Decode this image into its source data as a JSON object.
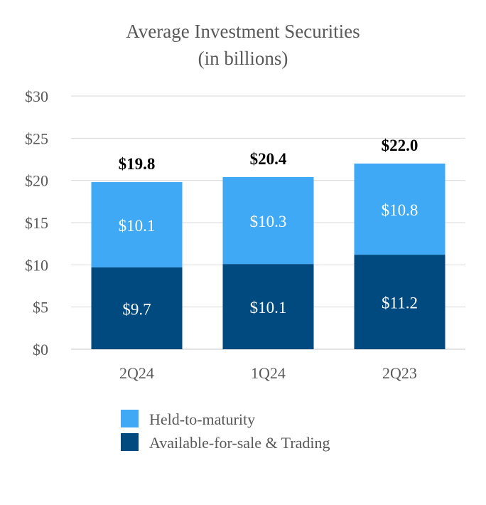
{
  "chart_data": {
    "type": "bar",
    "stacked": true,
    "title": "Average Investment Securities",
    "subtitle": "(in billions)",
    "categories": [
      "2Q24",
      "1Q24",
      "2Q23"
    ],
    "series": [
      {
        "name": "Available-for-sale & Trading",
        "values": [
          9.7,
          10.1,
          11.2
        ],
        "labels": [
          "$9.7",
          "$10.1",
          "$11.2"
        ],
        "color": "#004a80"
      },
      {
        "name": "Held-to-maturity",
        "values": [
          10.1,
          10.3,
          10.8
        ],
        "labels": [
          "$10.1",
          "$10.3",
          "$10.8"
        ],
        "color": "#3fa9f5"
      }
    ],
    "totals": [
      19.8,
      20.4,
      22.0
    ],
    "total_labels": [
      "$19.8",
      "$20.4",
      "$22.0"
    ],
    "yticks": [
      0,
      5,
      10,
      15,
      20,
      25,
      30
    ],
    "ytick_labels": [
      "$0",
      "$5",
      "$10",
      "$15",
      "$20",
      "$25",
      "$30"
    ],
    "ylim": [
      0,
      30
    ],
    "grid": true,
    "legend": {
      "placement": "bottom",
      "items": [
        {
          "label": "Held-to-maturity",
          "color": "#3fa9f5"
        },
        {
          "label": "Available-for-sale & Trading",
          "color": "#004a80"
        }
      ]
    }
  }
}
